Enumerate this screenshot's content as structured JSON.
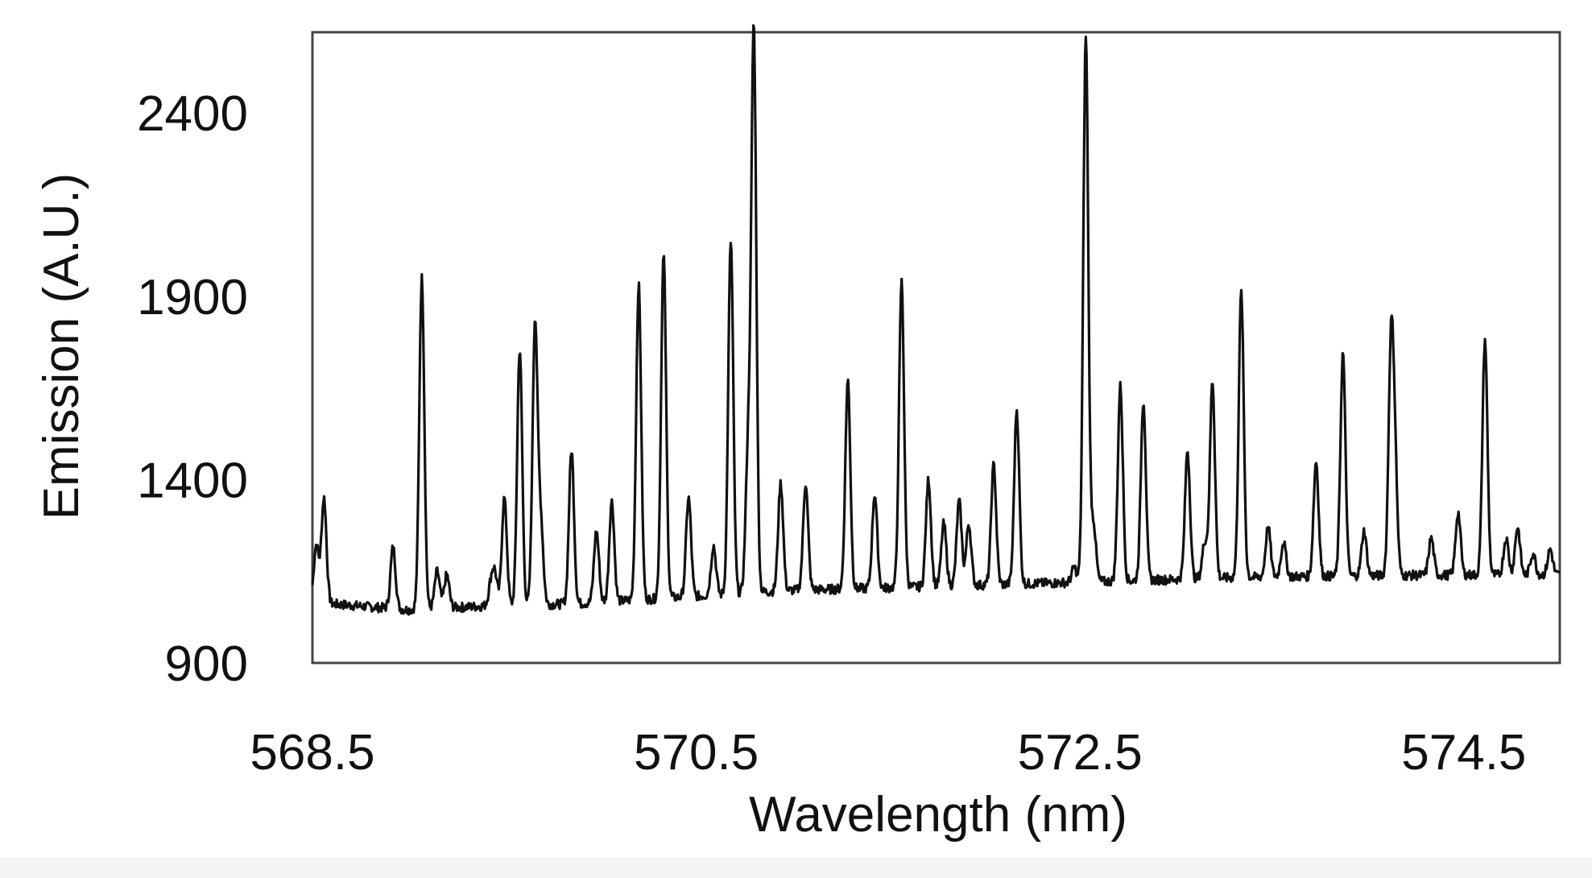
{
  "chart_data": {
    "type": "line",
    "title": "",
    "xlabel": "Wavelength (nm)",
    "ylabel": "Emission (A.U.)",
    "xlim": [
      568.5,
      575.0
    ],
    "ylim": [
      900,
      2620
    ],
    "xticks": [
      568.5,
      570.5,
      572.5,
      574.5
    ],
    "xtick_labels": [
      "568.5",
      "570.5",
      "572.5",
      "574.5"
    ],
    "yticks": [
      900,
      1400,
      1900,
      2400
    ],
    "ytick_labels": [
      "900",
      "1400",
      "1900",
      "2400"
    ],
    "grid": false,
    "legend": "none",
    "line_color": "#111111",
    "series": [
      {
        "baseline": [
          [
            568.5,
            1065
          ],
          [
            569.0,
            1045
          ],
          [
            569.4,
            1055
          ],
          [
            569.9,
            1062
          ],
          [
            570.5,
            1082
          ],
          [
            571.0,
            1098
          ],
          [
            571.5,
            1105
          ],
          [
            572.0,
            1113
          ],
          [
            572.5,
            1120
          ],
          [
            573.0,
            1128
          ],
          [
            573.5,
            1135
          ],
          [
            574.0,
            1138
          ],
          [
            574.5,
            1140
          ],
          [
            575.0,
            1140
          ]
        ],
        "peaks": [
          [
            568.52,
            1220
          ],
          [
            568.56,
            1350
          ],
          [
            568.92,
            1215
          ],
          [
            569.07,
            1950
          ],
          [
            569.15,
            1150
          ],
          [
            569.2,
            1140
          ],
          [
            569.43,
            1110
          ],
          [
            569.45,
            1140
          ],
          [
            569.5,
            1350
          ],
          [
            569.58,
            1755
          ],
          [
            569.66,
            1830
          ],
          [
            569.69,
            1280
          ],
          [
            569.85,
            1480
          ],
          [
            569.98,
            1260
          ],
          [
            570.06,
            1340
          ],
          [
            570.2,
            1930
          ],
          [
            570.33,
            2010
          ],
          [
            570.46,
            1350
          ],
          [
            570.59,
            1220
          ],
          [
            570.68,
            2050
          ],
          [
            570.77,
            1460
          ],
          [
            570.8,
            2620
          ],
          [
            570.94,
            1390
          ],
          [
            571.07,
            1390
          ],
          [
            571.29,
            1670
          ],
          [
            571.43,
            1360
          ],
          [
            571.57,
            1940
          ],
          [
            571.71,
            1400
          ],
          [
            571.79,
            1280
          ],
          [
            571.87,
            1340
          ],
          [
            571.92,
            1280
          ],
          [
            572.05,
            1440
          ],
          [
            572.17,
            1590
          ],
          [
            572.47,
            1160
          ],
          [
            572.53,
            2610
          ],
          [
            572.57,
            1280
          ],
          [
            572.71,
            1655
          ],
          [
            572.83,
            1615
          ],
          [
            573.06,
            1480
          ],
          [
            573.15,
            1230
          ],
          [
            573.19,
            1670
          ],
          [
            573.34,
            1910
          ],
          [
            573.48,
            1270
          ],
          [
            573.56,
            1230
          ],
          [
            573.73,
            1450
          ],
          [
            573.87,
            1745
          ],
          [
            573.98,
            1260
          ],
          [
            574.12,
            1730
          ],
          [
            574.14,
            1440
          ],
          [
            574.33,
            1240
          ],
          [
            574.47,
            1310
          ],
          [
            574.61,
            1780
          ],
          [
            574.72,
            1240
          ],
          [
            574.78,
            1270
          ],
          [
            574.86,
            1200
          ],
          [
            574.95,
            1210
          ]
        ]
      }
    ]
  }
}
